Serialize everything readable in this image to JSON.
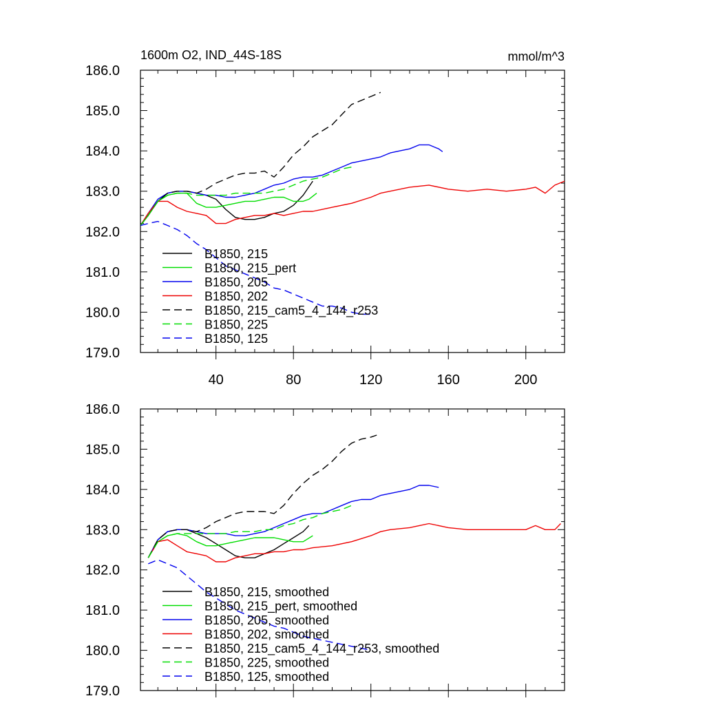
{
  "chart_data": [
    {
      "type": "line",
      "title": "1600m O2, IND_44S-18S",
      "units": "mmol/m^3",
      "xlim": [
        1,
        220
      ],
      "ylim": [
        179.0,
        186.0
      ],
      "x_ticks": [
        40,
        80,
        120,
        160,
        200
      ],
      "x_tick_labels": [
        "40",
        "80",
        "120",
        "160",
        "200"
      ],
      "y_ticks": [
        179.0,
        180.0,
        181.0,
        182.0,
        183.0,
        184.0,
        185.0,
        186.0
      ],
      "y_tick_labels": [
        "179.0",
        "180.0",
        "181.0",
        "182.0",
        "183.0",
        "184.0",
        "185.0",
        "186.0"
      ],
      "legend_position": "lower-left",
      "series": [
        {
          "name": "B1850, 215",
          "color": "#000000",
          "dash": "solid",
          "x": [
            1,
            5,
            10,
            15,
            20,
            25,
            30,
            35,
            40,
            45,
            50,
            55,
            60,
            65,
            70,
            75,
            80,
            85,
            90
          ],
          "y": [
            182.15,
            182.4,
            182.75,
            182.95,
            183.0,
            183.0,
            182.95,
            182.9,
            182.8,
            182.55,
            182.35,
            182.3,
            182.3,
            182.35,
            182.45,
            182.5,
            182.65,
            182.9,
            183.25
          ]
        },
        {
          "name": "B1850, 215_pert",
          "color": "#00dd00",
          "dash": "solid",
          "x": [
            1,
            5,
            10,
            15,
            20,
            25,
            30,
            35,
            40,
            45,
            50,
            55,
            60,
            65,
            70,
            75,
            80,
            85,
            88,
            92
          ],
          "y": [
            182.15,
            182.4,
            182.75,
            182.9,
            182.95,
            182.95,
            182.7,
            182.6,
            182.6,
            182.65,
            182.7,
            182.75,
            182.75,
            182.8,
            182.85,
            182.85,
            182.75,
            182.75,
            182.8,
            182.95
          ]
        },
        {
          "name": "B1850, 205",
          "color": "#0000ee",
          "dash": "solid",
          "x": [
            1,
            5,
            10,
            15,
            20,
            25,
            30,
            35,
            40,
            45,
            50,
            55,
            60,
            65,
            70,
            75,
            80,
            85,
            90,
            95,
            100,
            105,
            110,
            115,
            120,
            125,
            130,
            135,
            140,
            145,
            150,
            155,
            157
          ],
          "y": [
            182.15,
            182.45,
            182.8,
            182.95,
            183.0,
            183.0,
            182.95,
            182.9,
            182.9,
            182.85,
            182.85,
            182.9,
            182.95,
            183.05,
            183.15,
            183.2,
            183.3,
            183.35,
            183.35,
            183.4,
            183.5,
            183.6,
            183.7,
            183.75,
            183.8,
            183.85,
            183.95,
            184.0,
            184.05,
            184.15,
            184.15,
            184.05,
            183.98
          ]
        },
        {
          "name": "B1850, 202",
          "color": "#ee0000",
          "dash": "solid",
          "x": [
            1,
            5,
            10,
            15,
            20,
            25,
            30,
            35,
            40,
            45,
            50,
            55,
            60,
            65,
            70,
            75,
            80,
            85,
            90,
            95,
            100,
            110,
            120,
            125,
            130,
            135,
            140,
            150,
            160,
            170,
            180,
            190,
            200,
            205,
            210,
            215,
            220
          ],
          "y": [
            182.15,
            182.45,
            182.75,
            182.75,
            182.6,
            182.5,
            182.45,
            182.4,
            182.2,
            182.2,
            182.3,
            182.35,
            182.4,
            182.4,
            182.45,
            182.4,
            182.45,
            182.5,
            182.5,
            182.55,
            182.6,
            182.7,
            182.85,
            182.95,
            183.0,
            183.05,
            183.1,
            183.15,
            183.05,
            183.0,
            183.05,
            183.0,
            183.05,
            183.1,
            182.95,
            183.15,
            183.25
          ]
        },
        {
          "name": "B1850, 215_cam5_4_144_r253",
          "color": "#000000",
          "dash": "dashed",
          "x": [
            1,
            5,
            10,
            15,
            20,
            25,
            30,
            35,
            40,
            45,
            50,
            55,
            60,
            65,
            70,
            75,
            80,
            85,
            90,
            95,
            100,
            105,
            110,
            115,
            120,
            125
          ],
          "y": [
            182.15,
            182.4,
            182.75,
            182.95,
            183.0,
            183.0,
            182.95,
            183.05,
            183.2,
            183.3,
            183.4,
            183.45,
            183.45,
            183.5,
            183.35,
            183.6,
            183.9,
            184.1,
            184.35,
            184.5,
            184.65,
            184.9,
            185.15,
            185.25,
            185.35,
            185.45
          ]
        },
        {
          "name": "B1850, 225",
          "color": "#00dd00",
          "dash": "dashed",
          "x": [
            1,
            5,
            10,
            15,
            20,
            25,
            30,
            35,
            40,
            45,
            50,
            55,
            60,
            65,
            70,
            75,
            80,
            85,
            90,
            95,
            100,
            105,
            110
          ],
          "y": [
            182.15,
            182.4,
            182.75,
            182.9,
            182.95,
            182.95,
            182.9,
            182.9,
            182.9,
            182.9,
            182.95,
            182.95,
            182.95,
            182.95,
            183.0,
            183.05,
            183.15,
            183.25,
            183.3,
            183.35,
            183.45,
            183.55,
            183.6
          ]
        },
        {
          "name": "B1850, 125",
          "color": "#0000ee",
          "dash": "dashed",
          "x": [
            1,
            5,
            10,
            15,
            20,
            25,
            30,
            35,
            40,
            45,
            50,
            55,
            60,
            65,
            70,
            75,
            80,
            85,
            90,
            95,
            100,
            105,
            110,
            115,
            120
          ],
          "y": [
            182.15,
            182.2,
            182.25,
            182.15,
            182.05,
            181.9,
            181.7,
            181.55,
            181.35,
            181.15,
            181.05,
            180.95,
            180.85,
            180.75,
            180.6,
            180.55,
            180.45,
            180.35,
            180.25,
            180.15,
            180.15,
            180.1,
            180.0,
            179.95,
            179.95
          ]
        }
      ]
    },
    {
      "type": "line",
      "xlim": [
        1,
        220
      ],
      "ylim": [
        179.0,
        186.0
      ],
      "x_ticks": [
        40,
        80,
        120,
        160,
        200
      ],
      "y_ticks": [
        179.0,
        180.0,
        181.0,
        182.0,
        183.0,
        184.0,
        185.0,
        186.0
      ],
      "y_tick_labels": [
        "179.0",
        "180.0",
        "181.0",
        "182.0",
        "183.0",
        "184.0",
        "185.0",
        "186.0"
      ],
      "legend_position": "lower-left",
      "series": [
        {
          "name": "B1850, 215, smoothed",
          "color": "#000000",
          "dash": "solid",
          "x": [
            5,
            10,
            15,
            20,
            25,
            30,
            35,
            40,
            45,
            50,
            55,
            60,
            65,
            70,
            75,
            80,
            85,
            88
          ],
          "y": [
            182.3,
            182.75,
            182.95,
            183.0,
            183.0,
            182.9,
            182.8,
            182.65,
            182.5,
            182.35,
            182.3,
            182.3,
            182.4,
            182.5,
            182.65,
            182.8,
            182.95,
            183.1
          ]
        },
        {
          "name": "B1850, 215_pert, smoothed",
          "color": "#00dd00",
          "dash": "solid",
          "x": [
            5,
            10,
            15,
            20,
            25,
            30,
            35,
            40,
            45,
            50,
            55,
            60,
            65,
            70,
            75,
            80,
            85,
            90
          ],
          "y": [
            182.3,
            182.7,
            182.85,
            182.9,
            182.85,
            182.7,
            182.6,
            182.6,
            182.65,
            182.7,
            182.75,
            182.8,
            182.8,
            182.8,
            182.75,
            182.7,
            182.7,
            182.85
          ]
        },
        {
          "name": "B1850, 205, smoothed",
          "color": "#0000ee",
          "dash": "solid",
          "x": [
            5,
            10,
            15,
            20,
            25,
            30,
            35,
            40,
            45,
            50,
            55,
            60,
            65,
            70,
            75,
            80,
            85,
            90,
            95,
            100,
            105,
            110,
            115,
            120,
            125,
            130,
            135,
            140,
            145,
            150,
            155
          ],
          "y": [
            182.3,
            182.75,
            182.95,
            183.0,
            183.0,
            182.95,
            182.9,
            182.9,
            182.9,
            182.85,
            182.85,
            182.9,
            182.95,
            183.05,
            183.15,
            183.25,
            183.35,
            183.4,
            183.4,
            183.5,
            183.6,
            183.7,
            183.75,
            183.75,
            183.85,
            183.9,
            183.95,
            184.0,
            184.1,
            184.1,
            184.05
          ]
        },
        {
          "name": "B1850, 202, smoothed",
          "color": "#ee0000",
          "dash": "solid",
          "x": [
            5,
            10,
            15,
            20,
            25,
            30,
            35,
            40,
            45,
            50,
            55,
            60,
            65,
            70,
            75,
            80,
            85,
            90,
            100,
            110,
            120,
            125,
            130,
            140,
            150,
            160,
            170,
            180,
            190,
            200,
            205,
            210,
            215,
            218
          ],
          "y": [
            182.3,
            182.7,
            182.75,
            182.6,
            182.45,
            182.4,
            182.35,
            182.2,
            182.2,
            182.3,
            182.35,
            182.4,
            182.4,
            182.45,
            182.45,
            182.5,
            182.5,
            182.55,
            182.6,
            182.7,
            182.85,
            182.95,
            183.0,
            183.05,
            183.15,
            183.05,
            183.0,
            183.0,
            183.0,
            183.0,
            183.1,
            183.0,
            183.0,
            183.15
          ]
        },
        {
          "name": "B1850, 215_cam5_4_144_r253, smoothed",
          "color": "#000000",
          "dash": "dashed",
          "x": [
            5,
            10,
            15,
            20,
            25,
            30,
            35,
            40,
            45,
            50,
            55,
            60,
            65,
            70,
            75,
            80,
            85,
            90,
            95,
            100,
            105,
            110,
            115,
            120,
            123
          ],
          "y": [
            182.3,
            182.75,
            182.95,
            183.0,
            183.0,
            182.95,
            183.05,
            183.2,
            183.3,
            183.4,
            183.45,
            183.45,
            183.45,
            183.4,
            183.6,
            183.9,
            184.15,
            184.35,
            184.5,
            184.7,
            184.95,
            185.15,
            185.25,
            185.3,
            185.35
          ]
        },
        {
          "name": "B1850, 225, smoothed",
          "color": "#00dd00",
          "dash": "dashed",
          "x": [
            5,
            10,
            15,
            20,
            25,
            30,
            35,
            40,
            45,
            50,
            55,
            60,
            65,
            70,
            75,
            80,
            85,
            90,
            95,
            100,
            105,
            110
          ],
          "y": [
            182.3,
            182.7,
            182.85,
            182.9,
            182.9,
            182.9,
            182.9,
            182.9,
            182.9,
            182.95,
            182.95,
            182.95,
            183.0,
            183.0,
            183.1,
            183.15,
            183.25,
            183.3,
            183.4,
            183.45,
            183.5,
            183.6
          ]
        },
        {
          "name": "B1850, 125, smoothed",
          "color": "#0000ee",
          "dash": "dashed",
          "x": [
            5,
            10,
            15,
            20,
            25,
            30,
            35,
            40,
            45,
            50,
            55,
            60,
            65,
            70,
            75,
            80,
            85,
            90,
            95,
            100,
            105,
            110,
            115,
            120
          ],
          "y": [
            182.15,
            182.25,
            182.15,
            182.05,
            181.85,
            181.65,
            181.45,
            181.3,
            181.15,
            181.0,
            180.9,
            180.8,
            180.7,
            180.6,
            180.55,
            180.45,
            180.35,
            180.3,
            180.25,
            180.2,
            180.15,
            180.1,
            180.05,
            180.0
          ]
        }
      ]
    }
  ]
}
